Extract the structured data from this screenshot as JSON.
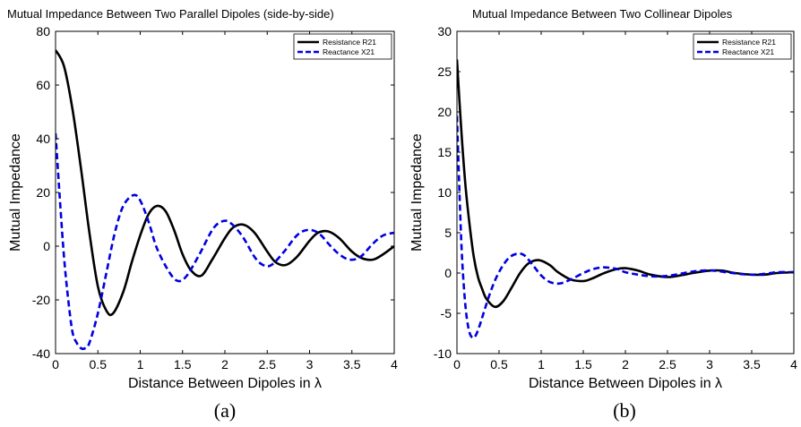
{
  "chart_data": [
    {
      "type": "line",
      "title": "Mutual Impedance Between Two Parallel Dipoles (side-by-side)",
      "xlabel": "Distance Between Dipoles in λ",
      "ylabel": "Mutual Impedance",
      "caption": "(a)",
      "xlim": [
        0,
        4
      ],
      "ylim": [
        -40,
        80
      ],
      "xticks": [
        "0",
        "0.5",
        "1",
        "1.5",
        "2",
        "2.5",
        "3",
        "3.5",
        "4"
      ],
      "yticks": [
        "-40",
        "-20",
        "0",
        "20",
        "40",
        "60",
        "80"
      ],
      "grid": false,
      "legend_position": "top-right",
      "series": [
        {
          "name": "Resistance R21",
          "color": "#000000",
          "style": "solid",
          "x": [
            0,
            0.1,
            0.2,
            0.3,
            0.4,
            0.5,
            0.6,
            0.68,
            0.8,
            0.9,
            1.0,
            1.1,
            1.2,
            1.3,
            1.4,
            1.5,
            1.6,
            1.72,
            1.85,
            2.0,
            2.1,
            2.22,
            2.35,
            2.5,
            2.6,
            2.72,
            2.85,
            3.0,
            3.1,
            3.22,
            3.35,
            3.5,
            3.62,
            3.75,
            3.87,
            4.0
          ],
          "y": [
            73,
            67,
            51,
            29,
            5,
            -15,
            -24,
            -25,
            -17,
            -6,
            4,
            12,
            15,
            13,
            6,
            -3,
            -9,
            -11,
            -5,
            3,
            7,
            8,
            5,
            -2,
            -6,
            -7,
            -4,
            2,
            5,
            5.5,
            3,
            -2,
            -4.5,
            -5,
            -3,
            0
          ]
        },
        {
          "name": "Reactance X21",
          "color": "#0000e0",
          "style": "dashed",
          "x": [
            0,
            0.05,
            0.1,
            0.15,
            0.2,
            0.25,
            0.3,
            0.35,
            0.4,
            0.5,
            0.6,
            0.7,
            0.8,
            0.92,
            1.0,
            1.1,
            1.2,
            1.35,
            1.45,
            1.55,
            1.7,
            1.85,
            1.95,
            2.05,
            2.2,
            2.35,
            2.45,
            2.55,
            2.7,
            2.85,
            2.97,
            3.1,
            3.25,
            3.35,
            3.47,
            3.6,
            3.75,
            3.87,
            4.0
          ],
          "y": [
            42,
            18,
            -4,
            -20,
            -32,
            -36,
            -38,
            -38,
            -36,
            -25,
            -10,
            5,
            15,
            19,
            17,
            9,
            -1,
            -10,
            -13,
            -11,
            -3,
            6,
            9,
            9,
            4,
            -4,
            -7,
            -7,
            -2,
            4,
            6,
            5,
            0,
            -3,
            -5,
            -4,
            1,
            4,
            5
          ]
        }
      ]
    },
    {
      "type": "line",
      "title": "Mutual Impedance Between Two Collinear Dipoles",
      "xlabel": "Distance Between Dipoles in λ",
      "ylabel": "Mutual Impedance",
      "caption": "(b)",
      "xlim": [
        0,
        4
      ],
      "ylim": [
        -10,
        30
      ],
      "xticks": [
        "0",
        "0.5",
        "1",
        "1.5",
        "2",
        "2.5",
        "3",
        "3.5",
        "4"
      ],
      "yticks": [
        "-10",
        "-5",
        "0",
        "5",
        "10",
        "15",
        "20",
        "25",
        "30"
      ],
      "grid": false,
      "legend_position": "top-right",
      "series": [
        {
          "name": "Resistance R21",
          "color": "#000000",
          "style": "solid",
          "x": [
            0,
            0.05,
            0.1,
            0.15,
            0.2,
            0.25,
            0.3,
            0.35,
            0.45,
            0.55,
            0.65,
            0.75,
            0.85,
            0.97,
            1.1,
            1.2,
            1.35,
            1.5,
            1.6,
            1.75,
            1.9,
            2.0,
            2.15,
            2.3,
            2.5,
            2.65,
            2.8,
            3.0,
            3.15,
            3.3,
            3.5,
            3.65,
            3.8,
            4.0
          ],
          "y": [
            26.5,
            18,
            11,
            6,
            2,
            -0.5,
            -2,
            -3.2,
            -4.2,
            -3.5,
            -1.8,
            0,
            1.2,
            1.6,
            1,
            0.1,
            -0.8,
            -1,
            -0.7,
            0,
            0.5,
            0.6,
            0.3,
            -0.2,
            -0.5,
            -0.3,
            0,
            0.3,
            0.3,
            0,
            -0.2,
            -0.2,
            0,
            0.1
          ]
        },
        {
          "name": "Reactance X21",
          "color": "#0000e0",
          "style": "dashed",
          "x": [
            0,
            0.03,
            0.06,
            0.1,
            0.14,
            0.18,
            0.22,
            0.27,
            0.33,
            0.4,
            0.47,
            0.55,
            0.63,
            0.72,
            0.8,
            0.9,
            1.0,
            1.1,
            1.22,
            1.35,
            1.5,
            1.62,
            1.75,
            1.9,
            2.0,
            2.15,
            2.3,
            2.45,
            2.6,
            2.75,
            2.9,
            3.05,
            3.2,
            3.35,
            3.5,
            3.65,
            3.8,
            4.0
          ],
          "y": [
            19.5,
            10,
            2,
            -4,
            -7,
            -8,
            -7.8,
            -6.5,
            -4.5,
            -2.3,
            -0.5,
            1,
            2,
            2.4,
            2.2,
            1,
            -0.3,
            -1.1,
            -1.3,
            -0.8,
            0,
            0.5,
            0.7,
            0.5,
            0.1,
            -0.2,
            -0.4,
            -0.4,
            -0.2,
            0.1,
            0.3,
            0.3,
            0.1,
            -0.1,
            -0.2,
            -0.1,
            0.1,
            0.1
          ]
        }
      ]
    }
  ]
}
